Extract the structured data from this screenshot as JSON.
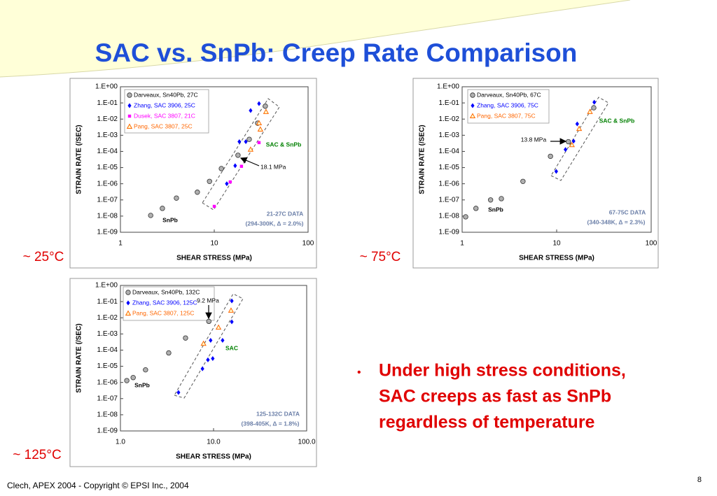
{
  "title": "SAC vs. SnPb: Creep Rate Comparison",
  "temperature_labels": [
    "~ 25°C",
    "~ 75°C",
    "~ 125°C"
  ],
  "bullet_lines": [
    "Under high stress conditions,",
    "SAC creeps as fast as SnPb",
    "regardless of temperature"
  ],
  "footer": "Clech, APEX 2004  -  Copyright © EPSI Inc., 2004",
  "page_number": "8",
  "chart_data": [
    {
      "type": "scatter",
      "xlabel": "SHEAR STRESS (MPa)",
      "ylabel": "STRAIN RATE (/SEC)",
      "log_x": true,
      "log_y": true,
      "xlim": [
        1,
        100
      ],
      "xticks": [
        1,
        10,
        100
      ],
      "ylim": [
        1e-09,
        1
      ],
      "yticks": [
        {
          "value": 1,
          "label": "1.E+00"
        },
        {
          "value": 0.1,
          "label": "1.E-01"
        },
        {
          "value": 0.01,
          "label": "1.E-02"
        },
        {
          "value": 0.001,
          "label": "1.E-03"
        },
        {
          "value": 0.0001,
          "label": "1.E-04"
        },
        {
          "value": 1e-05,
          "label": "1.E-05"
        },
        {
          "value": 1e-06,
          "label": "1.E-06"
        },
        {
          "value": 1e-07,
          "label": "1.E-07"
        },
        {
          "value": 1e-08,
          "label": "1.E-08"
        },
        {
          "value": 1e-09,
          "label": "1.E-09"
        }
      ],
      "series": [
        {
          "name": "Darveaux, Sn40Pb, 27C",
          "color": "#b0b0b0",
          "marker": "circle",
          "x": [
            2.1,
            2.8,
            3.95,
            6.6,
            8.9,
            11.9,
            17.9,
            23.6,
            29,
            35
          ],
          "values": [
            1.1e-08,
            3e-08,
            1.3e-07,
            3e-07,
            1.4e-06,
            8.7e-06,
            5.8e-05,
            0.00056,
            0.0056,
            0.063
          ]
        },
        {
          "name": "Zhang, SAC 3906, 25C",
          "color": "#0000ff",
          "marker": "diamond",
          "x": [
            13.6,
            16.7,
            18.5,
            21.7,
            24.4,
            30
          ],
          "values": [
            1e-06,
            1.3e-05,
            0.0004,
            0.0004,
            0.034,
            0.09
          ]
        },
        {
          "name": "Dusek, SAC 3807, 21C",
          "color": "#ff00ff",
          "marker": "square",
          "x": [
            10,
            14.8,
            19.5,
            30
          ],
          "values": [
            4e-08,
            1.3e-06,
            1.2e-05,
            0.00035
          ]
        },
        {
          "name": "Pang, SAC 3807, 25C",
          "color": "#ff6600",
          "marker": "triangle",
          "x": [
            24.4,
            30,
            31,
            35.6
          ],
          "values": [
            0.00013,
            0.0056,
            0.0023,
            0.028
          ]
        }
      ],
      "annotations": [
        {
          "text": "SnPb",
          "color": "#000000"
        },
        {
          "text": "SAC & SnPb",
          "color": "#008000"
        },
        {
          "text": "18.1 MPa",
          "color": "#000000"
        },
        {
          "text": "21-27C DATA",
          "color": "#6b7fa8"
        },
        {
          "text": "(294-300K, Δ = 2.0%)",
          "color": "#6b7fa8"
        }
      ]
    },
    {
      "type": "scatter",
      "xlabel": "SHEAR STRESS (MPa)",
      "ylabel": "STRAIN RATE (/SEC)",
      "log_x": true,
      "log_y": true,
      "xlim": [
        1,
        100
      ],
      "xticks": [
        1,
        10,
        100
      ],
      "ylim": [
        1e-09,
        1
      ],
      "yticks": [
        {
          "value": 1,
          "label": "1.E+00"
        },
        {
          "value": 0.1,
          "label": "1.E-01"
        },
        {
          "value": 0.01,
          "label": "1.E-02"
        },
        {
          "value": 0.001,
          "label": "1.E-03"
        },
        {
          "value": 0.0001,
          "label": "1.E-04"
        },
        {
          "value": 1e-05,
          "label": "1.E-05"
        },
        {
          "value": 1e-06,
          "label": "1.E-06"
        },
        {
          "value": 1e-07,
          "label": "1.E-07"
        },
        {
          "value": 1e-08,
          "label": "1.E-08"
        },
        {
          "value": 1e-09,
          "label": "1.E-09"
        }
      ],
      "series": [
        {
          "name": "Darveaux, Sn40Pb, 67C",
          "color": "#b0b0b0",
          "marker": "circle",
          "x": [
            1.09,
            1.4,
            2,
            2.6,
            4.4,
            8.6,
            13.3,
            24.7
          ],
          "values": [
            9e-09,
            3e-08,
            1e-07,
            1.2e-07,
            1.4e-06,
            5e-05,
            0.0004,
            0.05
          ]
        },
        {
          "name": "Zhang, SAC 3906, 75C",
          "color": "#0000ff",
          "marker": "diamond",
          "x": [
            9.9,
            12.4,
            15.1,
            16.5,
            25
          ],
          "values": [
            5.8e-06,
            0.00013,
            0.00043,
            0.005,
            0.11
          ]
        },
        {
          "name": "Pang, SAC 3807, 75C",
          "color": "#ff6600",
          "marker": "triangle",
          "x": [
            14.5,
            17.3,
            22.5
          ],
          "values": [
            0.00025,
            0.0025,
            0.028
          ]
        }
      ],
      "annotations": [
        {
          "text": "SnPb",
          "color": "#000000"
        },
        {
          "text": "SAC & SnPb",
          "color": "#008000"
        },
        {
          "text": "13.8 MPa",
          "color": "#000000"
        },
        {
          "text": "67-75C DATA",
          "color": "#6b7fa8"
        },
        {
          "text": "(340-348K, Δ = 2.3%)",
          "color": "#6b7fa8"
        }
      ]
    },
    {
      "type": "scatter",
      "xlabel": "SHEAR STRESS (MPa)",
      "ylabel": "STRAIN RATE (/SEC)",
      "log_x": true,
      "log_y": true,
      "xlim": [
        1,
        100
      ],
      "xticks": [
        {
          "value": 1,
          "label": "1.0"
        },
        {
          "value": 10,
          "label": "10.0"
        },
        {
          "value": 100,
          "label": "100.0"
        }
      ],
      "ylim": [
        1e-09,
        1
      ],
      "yticks": [
        {
          "value": 1,
          "label": "1.E+00"
        },
        {
          "value": 0.1,
          "label": "1.E-01"
        },
        {
          "value": 0.01,
          "label": "1.E-02"
        },
        {
          "value": 0.001,
          "label": "1.E-03"
        },
        {
          "value": 0.0001,
          "label": "1.E-04"
        },
        {
          "value": 1e-05,
          "label": "1.E-05"
        },
        {
          "value": 1e-06,
          "label": "1.E-06"
        },
        {
          "value": 1e-07,
          "label": "1.E-07"
        },
        {
          "value": 1e-08,
          "label": "1.E-08"
        },
        {
          "value": 1e-09,
          "label": "1.E-09"
        }
      ],
      "series": [
        {
          "name": "Darveaux, Sn40Pb, 132C",
          "color": "#b0b0b0",
          "marker": "circle",
          "x": [
            1.17,
            1.37,
            1.86,
            3.3,
            5,
            8.9
          ],
          "values": [
            1.3e-06,
            2e-06,
            6e-06,
            6.7e-05,
            0.00056,
            0.006
          ]
        },
        {
          "name": "Zhang, SAC 3906, 125C",
          "color": "#0000ff",
          "marker": "diamond",
          "x": [
            4.2,
            7.6,
            8.7,
            9.8,
            9.3,
            12.5,
            15.7,
            15.7
          ],
          "values": [
            2.4e-07,
            7e-06,
            2.5e-05,
            3e-05,
            0.0004,
            0.0004,
            0.0056,
            0.11
          ]
        },
        {
          "name": "Pang, SAC 3807, 125C",
          "color": "#ff6600",
          "marker": "triangle",
          "x": [
            7.8,
            11.3,
            15.4
          ],
          "values": [
            0.00025,
            0.0025,
            0.028
          ]
        }
      ],
      "annotations": [
        {
          "text": "SnPb",
          "color": "#000000"
        },
        {
          "text": "9.2 MPa",
          "color": "#000000"
        },
        {
          "text": "SAC",
          "color": "#008000"
        },
        {
          "text": "125-132C DATA",
          "color": "#6b7fa8"
        },
        {
          "text": "(398-405K, Δ = 1.8%)",
          "color": "#6b7fa8"
        }
      ]
    }
  ]
}
